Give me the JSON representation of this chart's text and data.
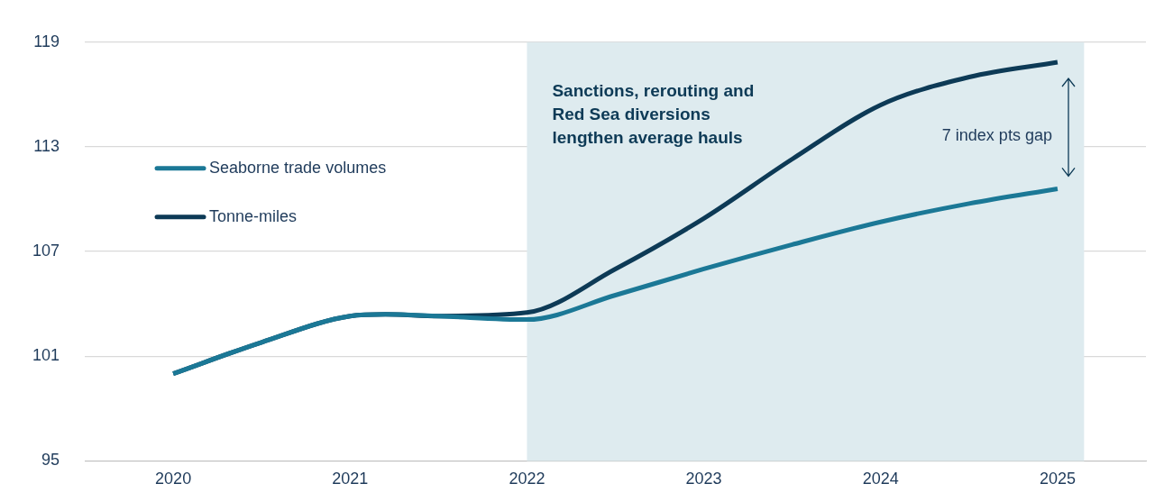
{
  "chart_data": {
    "type": "line",
    "x": [
      2020,
      2020.5,
      2021,
      2021.2,
      2021.5,
      2022,
      2022.5,
      2023,
      2023.5,
      2024,
      2024.5,
      2025
    ],
    "series": [
      {
        "name": "Seaborne trade volumes",
        "color": "#1b7896",
        "values": [
          100,
          101.8,
          103.3,
          103.4,
          103.3,
          103.1,
          104.5,
          106.0,
          107.4,
          108.7,
          109.75,
          110.6
        ]
      },
      {
        "name": "Tonne-miles",
        "color": "#0d3a56",
        "values": [
          100,
          101.8,
          103.3,
          103.4,
          103.3,
          103.5,
          106.0,
          108.9,
          112.3,
          115.4,
          117.0,
          117.85
        ]
      }
    ],
    "xlim": [
      2019.5,
      2025.5
    ],
    "xticks": [
      2020,
      2021,
      2022,
      2023,
      2024,
      2025
    ],
    "ylim": [
      95,
      119
    ],
    "yticks": [
      95,
      101,
      107,
      113,
      119
    ],
    "grid": "y",
    "legend": "top left",
    "marker": "none",
    "line_style": "solid",
    "bands": [
      {
        "axis": "x",
        "from": 2022,
        "to": 2025.15,
        "label": "Sanctions, rerouting and Red Sea diversions lengthen average hauls",
        "color": "#deebef"
      }
    ],
    "annotations": [
      "7 index pts gap"
    ]
  }
}
